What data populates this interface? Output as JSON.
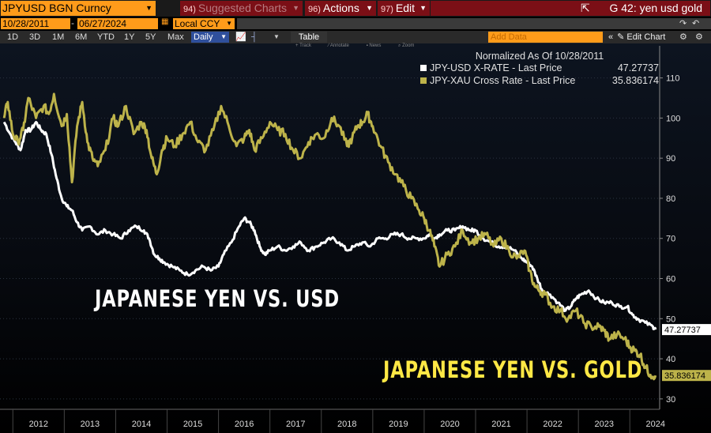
{
  "topbar": {
    "ticker": "JPYUSD BGN Curncy",
    "menu1_num": "94)",
    "menu1_label": "Suggested Charts",
    "menu2_num": "96)",
    "menu2_label": "Actions",
    "menu3_num": "97)",
    "menu3_label": "Edit",
    "chart_title": "G 42: yen usd gold"
  },
  "toolbar": {
    "start_date": "10/28/2011",
    "date_sep": "-",
    "end_date": "06/27/2024",
    "currency": "Local CCY",
    "periods": [
      "1D",
      "3D",
      "1M",
      "6M",
      "YTD",
      "1Y",
      "5Y",
      "Max"
    ],
    "frequency": "Daily",
    "table_label": "Table",
    "add_data_placeholder": "Add Data",
    "edit_chart_label": "Edit Chart",
    "chart_tools": [
      "Track",
      "Annotate",
      "News",
      "Zoom"
    ]
  },
  "colors": {
    "white_series": "#ffffff",
    "gold_series": "#bdb34a",
    "gold_text": "#ffe845",
    "accent_orange": "#ff9b1a",
    "bar_red": "#7b0f16"
  },
  "annotations": {
    "yen_usd": "JAPANESE YEN VS. USD",
    "yen_gold": "JAPANESE YEN VS. GOLD"
  },
  "chart_data": {
    "type": "line",
    "title": "Normalized As Of 10/28/2011",
    "legend_position": "top-right",
    "y_axis_side": "right",
    "ylim": [
      28,
      118
    ],
    "xlim": [
      2011.75,
      2024.58
    ],
    "yticks": [
      30,
      40,
      50,
      60,
      70,
      80,
      90,
      100,
      110
    ],
    "xticks": [
      2012,
      2013,
      2014,
      2015,
      2016,
      2017,
      2018,
      2019,
      2020,
      2021,
      2022,
      2023,
      2024
    ],
    "series": [
      {
        "name": "JPY-USD X-RATE - Last Price",
        "last_value": "47.27737",
        "color": "#ffffff",
        "x": [
          2011.83,
          2011.95,
          2012.05,
          2012.15,
          2012.25,
          2012.35,
          2012.45,
          2012.55,
          2012.65,
          2012.75,
          2012.85,
          2012.95,
          2013.05,
          2013.15,
          2013.25,
          2013.35,
          2013.5,
          2013.65,
          2013.8,
          2013.95,
          2014.1,
          2014.25,
          2014.4,
          2014.55,
          2014.65,
          2014.75,
          2014.85,
          2014.95,
          2015.1,
          2015.25,
          2015.4,
          2015.55,
          2015.7,
          2015.85,
          2016.0,
          2016.1,
          2016.25,
          2016.4,
          2016.5,
          2016.6,
          2016.7,
          2016.8,
          2016.9,
          2017.0,
          2017.15,
          2017.3,
          2017.45,
          2017.6,
          2017.75,
          2017.9,
          2018.05,
          2018.2,
          2018.35,
          2018.5,
          2018.65,
          2018.8,
          2018.95,
          2019.1,
          2019.25,
          2019.4,
          2019.55,
          2019.7,
          2019.85,
          2020.0,
          2020.1,
          2020.2,
          2020.3,
          2020.45,
          2020.6,
          2020.75,
          2020.9,
          2021.0,
          2021.15,
          2021.3,
          2021.45,
          2021.6,
          2021.75,
          2021.9,
          2022.0,
          2022.1,
          2022.2,
          2022.3,
          2022.45,
          2022.6,
          2022.75,
          2022.85,
          2022.95,
          2023.05,
          2023.2,
          2023.35,
          2023.5,
          2023.65,
          2023.8,
          2023.95,
          2024.05,
          2024.15,
          2024.3,
          2024.45,
          2024.5
        ],
        "y": [
          99,
          96,
          94,
          92,
          97,
          97,
          99,
          97,
          96,
          91,
          85,
          80,
          78,
          77,
          74,
          72,
          73,
          71,
          72,
          71,
          70,
          72,
          73,
          72,
          70,
          66,
          65,
          64,
          63,
          62,
          61,
          62,
          63,
          62,
          63,
          66,
          69,
          73,
          75,
          74,
          72,
          68,
          66,
          67,
          68,
          67,
          68,
          69,
          67,
          68,
          69,
          70,
          69,
          67,
          68,
          69,
          68,
          70,
          70,
          71,
          71,
          70,
          70,
          70,
          71,
          70,
          71,
          72,
          72,
          73,
          72,
          72,
          70,
          69,
          68,
          68,
          67,
          65,
          64,
          63,
          60,
          57,
          56,
          54,
          52,
          53,
          55,
          56,
          57,
          55,
          54,
          54,
          53,
          53,
          51,
          50,
          49,
          48,
          47.28
        ]
      },
      {
        "name": "JPY-XAU Cross Rate - Last Price",
        "last_value": "35.836174",
        "color": "#bdb34a",
        "x": [
          2011.83,
          2011.9,
          2012.0,
          2012.1,
          2012.2,
          2012.3,
          2012.45,
          2012.6,
          2012.7,
          2012.8,
          2012.95,
          2013.05,
          2013.15,
          2013.25,
          2013.35,
          2013.45,
          2013.55,
          2013.65,
          2013.8,
          2013.95,
          2014.05,
          2014.2,
          2014.35,
          2014.5,
          2014.6,
          2014.7,
          2014.8,
          2014.9,
          2015.0,
          2015.15,
          2015.3,
          2015.45,
          2015.6,
          2015.75,
          2015.9,
          2016.05,
          2016.2,
          2016.35,
          2016.5,
          2016.6,
          2016.7,
          2016.85,
          2017.0,
          2017.15,
          2017.3,
          2017.45,
          2017.6,
          2017.75,
          2017.9,
          2018.05,
          2018.2,
          2018.35,
          2018.5,
          2018.6,
          2018.7,
          2018.8,
          2018.9,
          2019.0,
          2019.15,
          2019.3,
          2019.45,
          2019.6,
          2019.75,
          2019.9,
          2020.0,
          2020.1,
          2020.2,
          2020.3,
          2020.45,
          2020.6,
          2020.75,
          2020.9,
          2021.05,
          2021.2,
          2021.35,
          2021.5,
          2021.65,
          2021.8,
          2021.95,
          2022.05,
          2022.15,
          2022.25,
          2022.35,
          2022.5,
          2022.65,
          2022.8,
          2022.95,
          2023.1,
          2023.25,
          2023.4,
          2023.5,
          2023.6,
          2023.75,
          2023.9,
          2024.0,
          2024.1,
          2024.2,
          2024.3,
          2024.4,
          2024.5
        ],
        "y": [
          100,
          104,
          96,
          94,
          97,
          105,
          100,
          103,
          101,
          106,
          98,
          101,
          84,
          98,
          104,
          94,
          90,
          88,
          92,
          100,
          98,
          103,
          96,
          99,
          97,
          90,
          86,
          92,
          95,
          93,
          96,
          99,
          94,
          92,
          97,
          103,
          98,
          93,
          95,
          97,
          92,
          95,
          99,
          97,
          96,
          92,
          90,
          94,
          96,
          95,
          100,
          98,
          93,
          95,
          98,
          99,
          101,
          98,
          93,
          89,
          86,
          83,
          80,
          77,
          75,
          72,
          68,
          63,
          66,
          68,
          72,
          69,
          70,
          71,
          68,
          70,
          67,
          65,
          67,
          62,
          58,
          57,
          56,
          53,
          52,
          50,
          52,
          49,
          48,
          48,
          47,
          45,
          46,
          45,
          43,
          42,
          41,
          38,
          36,
          35.84
        ]
      }
    ]
  }
}
